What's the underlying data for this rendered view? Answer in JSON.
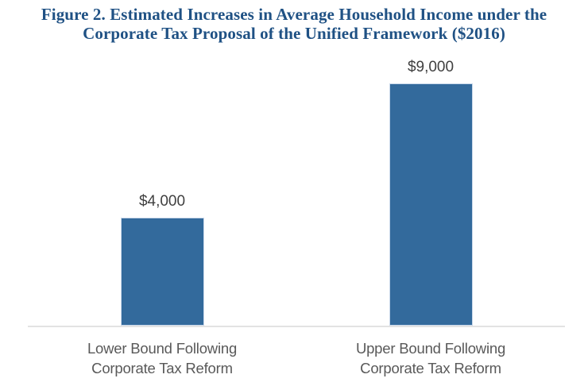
{
  "colors": {
    "background": "#FFFFFF",
    "title": "#1F5184",
    "bar": "#336A9C",
    "bar_border": "#C9D8EA",
    "value_label": "#404040",
    "category_label": "#595959",
    "axis_line": "#E3E3E3"
  },
  "chart_data": {
    "type": "bar",
    "title": "Figure 2. Estimated Increases in Average Household Income under the Corporate Tax Proposal of the Unified Framework ($2016)",
    "categories": [
      "Lower Bound Following\nCorporate Tax Reform",
      "Upper Bound Following\nCorporate Tax Reform"
    ],
    "values": [
      4000,
      9000
    ],
    "value_labels": [
      "$4,000",
      "$9,000"
    ],
    "xlabel": "",
    "ylabel": "",
    "ylim": [
      0,
      9000
    ],
    "grid": false,
    "legend": false,
    "bar_color": "#336A9C",
    "baseline_axis": "x",
    "value_labels_position": "above-bar"
  }
}
